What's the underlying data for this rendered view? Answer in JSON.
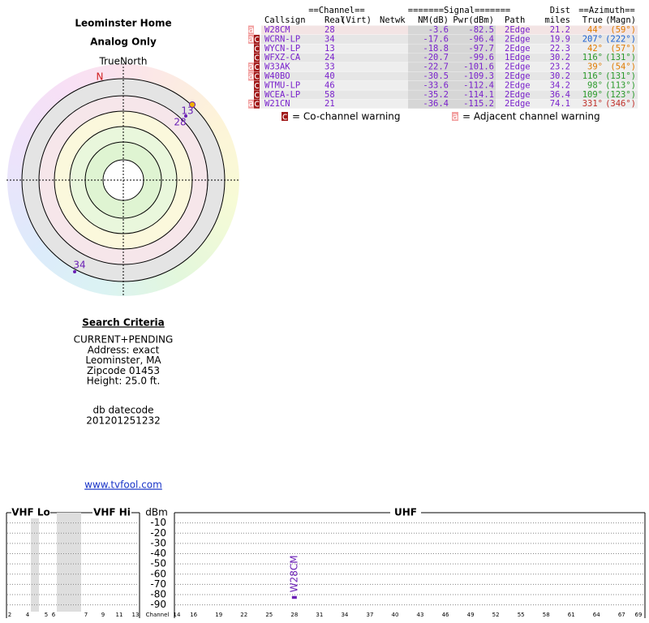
{
  "header": {
    "title": "Leominster Home",
    "subtitle": "Analog Only"
  },
  "compass": {
    "north_label": "TrueNorth",
    "n_marker": "N",
    "markers": [
      "13",
      "28",
      "34"
    ]
  },
  "table": {
    "group_headers": [
      "==Channel==",
      "=======Signal=======",
      "Dist",
      "==Azimuth=="
    ],
    "columns": [
      "Callsign",
      "Real",
      "(Virt)",
      "Netwk",
      "NM(dB)",
      "Pwr(dBm)",
      "Path",
      "miles",
      "True",
      "(Magn)"
    ],
    "rows": [
      {
        "flags": [
          "a"
        ],
        "callsign": "W28CM",
        "real": 28,
        "nm": -3.6,
        "pwr": -82.5,
        "path": "2Edge",
        "dist": 21.2,
        "true": "44°",
        "magn": "(59°)",
        "color": "#e07b00"
      },
      {
        "flags": [
          "a",
          "c"
        ],
        "callsign": "WCRN-LP",
        "real": 34,
        "nm": -17.6,
        "pwr": -96.4,
        "path": "2Edge",
        "dist": 19.9,
        "true": "207°",
        "magn": "(222°)",
        "color": "#1a5fd0"
      },
      {
        "flags": [
          "c"
        ],
        "callsign": "WYCN-LP",
        "real": 13,
        "nm": -18.8,
        "pwr": -97.7,
        "path": "2Edge",
        "dist": 22.3,
        "true": "42°",
        "magn": "(57°)",
        "color": "#e07b00"
      },
      {
        "flags": [
          "c"
        ],
        "callsign": "WFXZ-CA",
        "real": 24,
        "nm": -20.7,
        "pwr": -99.6,
        "path": "1Edge",
        "dist": 30.2,
        "true": "116°",
        "magn": "(131°)",
        "color": "#2a9a2a"
      },
      {
        "flags": [
          "a",
          "c"
        ],
        "callsign": "W33AK",
        "real": 33,
        "nm": -22.7,
        "pwr": -101.6,
        "path": "2Edge",
        "dist": 23.2,
        "true": "39°",
        "magn": "(54°)",
        "color": "#e07b00"
      },
      {
        "flags": [
          "a",
          "c"
        ],
        "callsign": "W40BO",
        "real": 40,
        "nm": -30.5,
        "pwr": -109.3,
        "path": "2Edge",
        "dist": 30.2,
        "true": "116°",
        "magn": "(131°)",
        "color": "#2a9a2a"
      },
      {
        "flags": [
          "c"
        ],
        "callsign": "WTMU-LP",
        "real": 46,
        "nm": -33.6,
        "pwr": -112.4,
        "path": "2Edge",
        "dist": 34.2,
        "true": "98°",
        "magn": "(113°)",
        "color": "#2a9a2a"
      },
      {
        "flags": [
          "c"
        ],
        "callsign": "WCEA-LP",
        "real": 58,
        "nm": -35.2,
        "pwr": -114.1,
        "path": "2Edge",
        "dist": 36.4,
        "true": "109°",
        "magn": "(123°)",
        "color": "#2a9a2a"
      },
      {
        "flags": [
          "a",
          "c"
        ],
        "callsign": "W21CN",
        "real": 21,
        "nm": -36.4,
        "pwr": -115.2,
        "path": "2Edge",
        "dist": 74.1,
        "true": "331°",
        "magn": "(346°)",
        "color": "#c0302a"
      }
    ]
  },
  "legend": [
    {
      "flag": "c",
      "text": "= Co-channel warning"
    },
    {
      "flag": "a",
      "text": "= Adjacent channel warning"
    }
  ],
  "search": {
    "title": "Search Criteria",
    "lines": [
      "CURRENT+PENDING",
      "Address: exact",
      "Leominster, MA",
      "Zipcode 01453",
      "Height: 25.0 ft."
    ],
    "datecode_label": "db datecode",
    "datecode": "201201251232",
    "link": "www.tvfool.com"
  },
  "spectrum": {
    "sections": [
      "VHF Lo",
      "VHF Hi",
      "UHF"
    ],
    "y_label": "dBm",
    "x_label": "Channel",
    "ylim": [
      -95,
      0
    ],
    "yticks": [
      -10,
      -20,
      -30,
      -40,
      -50,
      -60,
      -70,
      -80,
      -90
    ],
    "vhf_ticks": [
      2,
      4,
      5,
      6,
      7,
      9,
      11,
      13
    ],
    "uhf_ticks": [
      14,
      16,
      19,
      22,
      25,
      28,
      31,
      34,
      37,
      40,
      43,
      46,
      49,
      52,
      55,
      58,
      61,
      64,
      67,
      69
    ],
    "uhf_xlim": [
      14,
      69
    ],
    "bars": [
      {
        "label": "W28CM",
        "channel": 28,
        "value": -82.5,
        "color": "#6a1fb5"
      }
    ]
  }
}
